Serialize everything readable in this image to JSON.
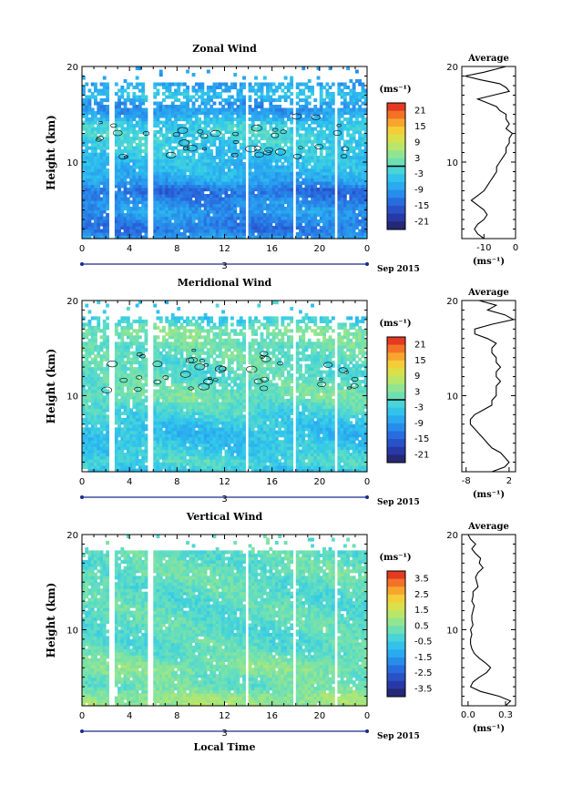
{
  "chart_data": [
    {
      "type": "heatmap",
      "title": "Zonal Wind",
      "ylabel": "Height (km)",
      "xlabel": "",
      "xticks": [
        "0",
        "4",
        "8",
        "12",
        "16",
        "20",
        "0"
      ],
      "yticks": [
        "20",
        "10"
      ],
      "xlim": [
        0,
        24
      ],
      "ylim": [
        2,
        20
      ],
      "date_marker": "3",
      "date_label": "Sep 2015",
      "colorbar": {
        "unit": "(ms⁻¹)",
        "ticks": [
          "21",
          "15",
          "9",
          "3",
          "-3",
          "-9",
          "-15",
          "-21"
        ],
        "range": [
          -24,
          24
        ]
      },
      "contour_level": 0,
      "profile_altitudes": [
        18,
        17,
        16,
        15,
        14,
        13,
        12,
        11,
        10,
        9,
        8,
        7,
        6,
        5,
        4,
        3,
        2
      ],
      "profile_values": [
        -8,
        -4,
        -10,
        -8,
        -3,
        -2,
        -3,
        -4,
        -5,
        -6,
        -8,
        -14,
        -11,
        -9,
        -11,
        -13,
        -8
      ],
      "average": {
        "title": "Average",
        "xticks": [
          "-10",
          "0"
        ],
        "unit": "(ms⁻¹)",
        "xlim": [
          -17,
          0
        ],
        "altitudes": [
          20,
          19.4,
          19.0,
          18.6,
          18.2,
          17.8,
          17.4,
          17.0,
          16.6,
          16.2,
          15.8,
          15.4,
          15.0,
          14.5,
          14.0,
          13.5,
          13.0,
          12.5,
          12.0,
          11.5,
          11.0,
          10.5,
          10.0,
          9.5,
          9.0,
          8.5,
          8.0,
          7.5,
          7.0,
          6.5,
          6.0,
          5.5,
          5.0,
          4.5,
          4.0,
          3.5,
          3.0,
          2.5,
          2.0
        ],
        "values": [
          -3,
          -10,
          -16,
          -11,
          -5,
          -3,
          -2,
          -7,
          -12,
          -9,
          -6,
          -5,
          -3,
          -3,
          -2,
          -3,
          -1,
          -2,
          -2,
          -3,
          -3,
          -4,
          -5,
          -6,
          -6,
          -7,
          -8,
          -9,
          -10,
          -12,
          -14,
          -12,
          -10,
          -9,
          -10,
          -12,
          -13,
          -12,
          -10
        ]
      }
    },
    {
      "type": "heatmap",
      "title": "Meridional Wind",
      "ylabel": "Height (km)",
      "xlabel": "",
      "xticks": [
        "0",
        "4",
        "8",
        "12",
        "16",
        "20",
        "0"
      ],
      "yticks": [
        "20",
        "10"
      ],
      "xlim": [
        0,
        24
      ],
      "ylim": [
        2,
        20
      ],
      "date_marker": "3",
      "date_label": "Sep 2015",
      "colorbar": {
        "unit": "(ms⁻¹)",
        "ticks": [
          "21",
          "15",
          "9",
          "3",
          "-3",
          "-9",
          "-15",
          "-21"
        ],
        "range": [
          -24,
          24
        ]
      },
      "contour_level": 0,
      "profile_altitudes": [
        18,
        17,
        16,
        15,
        14,
        13,
        12,
        11,
        10,
        9,
        8,
        7,
        6,
        5,
        4,
        3,
        2
      ],
      "profile_values": [
        -3,
        3,
        2,
        1,
        1,
        0,
        0,
        1,
        2,
        0,
        -2,
        -4,
        -5,
        -4,
        -3,
        -1,
        -5
      ],
      "average": {
        "title": "Average",
        "xticks": [
          "-8",
          "2"
        ],
        "unit": "(ms⁻¹)",
        "xlim": [
          -9,
          3.5
        ],
        "altitudes": [
          20,
          19.5,
          19.0,
          18.5,
          18.0,
          17.5,
          17.0,
          16.5,
          16.0,
          15.5,
          15.0,
          14.5,
          14.0,
          13.5,
          13.0,
          12.5,
          12.0,
          11.5,
          11.0,
          10.5,
          10.0,
          9.5,
          9.0,
          8.5,
          8.0,
          7.5,
          7.0,
          6.5,
          6.0,
          5.5,
          5.0,
          4.5,
          4.0,
          3.5,
          3.0,
          2.5,
          2.0
        ],
        "values": [
          -5,
          -1,
          -3,
          1,
          3,
          -2,
          -6,
          -6,
          -3,
          -1,
          -2,
          -2,
          -1,
          -1,
          0,
          -1,
          -1,
          0,
          -1,
          -1,
          -1,
          -2,
          -2,
          -4,
          -6,
          -7,
          -7,
          -6,
          -5,
          -4,
          -3,
          -2,
          0,
          1,
          2,
          1,
          -2
        ]
      }
    },
    {
      "type": "heatmap",
      "title": "Vertical Wind",
      "ylabel": "Height (km)",
      "xlabel": "Local Time",
      "xticks": [
        "0",
        "4",
        "8",
        "12",
        "16",
        "20",
        "0"
      ],
      "yticks": [
        "20",
        "10"
      ],
      "xlim": [
        0,
        24
      ],
      "ylim": [
        2,
        20
      ],
      "date_marker": "3",
      "date_label": "Sep 2015",
      "colorbar": {
        "unit": "(ms⁻¹)",
        "ticks": [
          "3.5",
          "2.5",
          "1.5",
          "0.5",
          "-0.5",
          "-1.5",
          "-2.5",
          "-3.5"
        ],
        "range": [
          -4,
          4
        ]
      },
      "profile_altitudes": [
        18,
        17,
        16,
        15,
        14,
        13,
        12,
        11,
        10,
        9,
        8,
        7,
        6,
        5,
        4,
        3,
        2
      ],
      "profile_values": [
        0.1,
        0.1,
        0.2,
        0.1,
        0.05,
        0.0,
        0.05,
        0.05,
        0.0,
        0.0,
        0.05,
        0.3,
        0.6,
        0.3,
        0.2,
        0.8,
        0.9
      ],
      "average": {
        "title": "Average",
        "xticks": [
          "0.0",
          "0.3"
        ],
        "unit": "(ms⁻¹)",
        "xlim": [
          -0.05,
          0.38
        ],
        "altitudes": [
          20,
          19.5,
          19.0,
          18.5,
          18.0,
          17.5,
          17.0,
          16.5,
          16.0,
          15.5,
          15.0,
          14.5,
          14.0,
          13.5,
          13.0,
          12.5,
          12.0,
          11.5,
          11.0,
          10.5,
          10.0,
          9.5,
          9.0,
          8.5,
          8.0,
          7.5,
          7.0,
          6.5,
          6.0,
          5.5,
          5.0,
          4.5,
          4.0,
          3.5,
          3.0,
          2.5,
          2.0
        ],
        "values": [
          0.0,
          0.02,
          0.06,
          0.03,
          0.06,
          0.1,
          0.09,
          0.12,
          0.08,
          0.06,
          0.07,
          0.08,
          0.04,
          0.04,
          0.03,
          0.05,
          0.04,
          0.03,
          0.03,
          0.04,
          0.02,
          0.03,
          0.02,
          0.02,
          0.03,
          0.05,
          0.09,
          0.14,
          0.18,
          0.15,
          0.09,
          0.04,
          0.02,
          0.1,
          0.25,
          0.34,
          0.3
        ]
      }
    }
  ]
}
